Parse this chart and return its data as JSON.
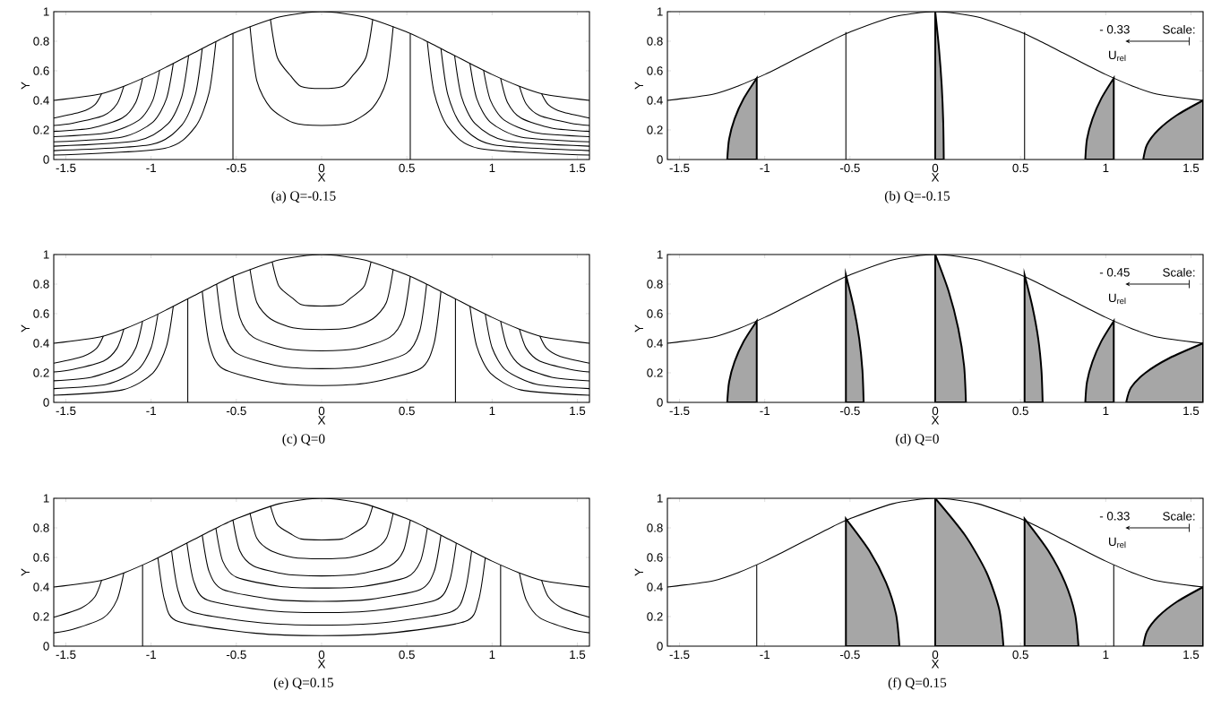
{
  "chart_data": [
    {
      "type": "line",
      "title": "(a)  Q=-0.15",
      "xlabel": "X",
      "ylabel": "Y",
      "color": "#000000",
      "xlim": [
        -1.571,
        1.571
      ],
      "ylim": [
        0,
        1
      ],
      "xticks": [
        -1.5,
        -1,
        -0.5,
        0,
        0.5,
        1,
        1.5
      ],
      "yticks": [
        0,
        0.2,
        0.4,
        0.6,
        0.8,
        1
      ],
      "series": [
        {
          "x": [
            -1.571,
            -1.3,
            -1.15,
            -1.0,
            -0.9,
            -0.75,
            -0.6,
            -0.5,
            -0.25,
            0,
            0.25,
            0.5,
            0.6,
            0.75,
            0.9,
            1.0,
            1.15,
            1.3,
            1.571
          ],
          "values": [
            0.4,
            0.443,
            0.5,
            0.575,
            0.632,
            0.721,
            0.809,
            0.862,
            0.963,
            1,
            0.963,
            0.862,
            0.809,
            0.721,
            0.632,
            0.575,
            0.5,
            0.443,
            0.4
          ]
        },
        {
          "x": [
            -1.571,
            -1.41,
            -1.33,
            -1.29
          ],
          "values": [
            0.28,
            0.322,
            0.371,
            0.446
          ]
        },
        {
          "x": [
            -1.571,
            -1.46,
            -1.28,
            -1.2,
            -1.16
          ],
          "values": [
            0.23,
            0.246,
            0.297,
            0.376,
            0.496
          ]
        },
        {
          "x": [
            -1.571,
            -1.35,
            -1.17,
            -1.09,
            -1.05
          ],
          "values": [
            0.19,
            0.212,
            0.28,
            0.387,
            0.549
          ]
        },
        {
          "x": [
            -1.571,
            -1.25,
            -1.07,
            -0.99,
            -0.95
          ],
          "values": [
            0.155,
            0.182,
            0.267,
            0.401,
            0.603
          ]
        },
        {
          "x": [
            -1.571,
            -1.17,
            -0.99,
            -0.91,
            -0.87
          ],
          "values": [
            0.12,
            0.152,
            0.252,
            0.411,
            0.649
          ]
        },
        {
          "x": [
            -1.571,
            -1.08,
            -0.9,
            -0.82,
            -0.78
          ],
          "values": [
            0.09,
            0.127,
            0.243,
            0.427,
            0.703
          ]
        },
        {
          "x": [
            -1.571,
            -1.0,
            -0.82,
            -0.74,
            -0.7
          ],
          "values": [
            0.06,
            0.101,
            0.233,
            0.44,
            0.751
          ]
        },
        {
          "x": [
            -1.571,
            -0.92,
            -0.74,
            -0.66,
            -0.62
          ],
          "values": [
            0.03,
            0.076,
            0.222,
            0.452,
            0.797
          ]
        },
        {
          "x": [
            1.29,
            1.33,
            1.41,
            1.571
          ],
          "values": [
            0.446,
            0.371,
            0.322,
            0.28
          ]
        },
        {
          "x": [
            1.16,
            1.2,
            1.28,
            1.46,
            1.571
          ],
          "values": [
            0.496,
            0.376,
            0.297,
            0.246,
            0.23
          ]
        },
        {
          "x": [
            1.05,
            1.09,
            1.17,
            1.35,
            1.571
          ],
          "values": [
            0.549,
            0.387,
            0.28,
            0.212,
            0.19
          ]
        },
        {
          "x": [
            0.95,
            0.99,
            1.07,
            1.25,
            1.571
          ],
          "values": [
            0.603,
            0.401,
            0.267,
            0.182,
            0.155
          ]
        },
        {
          "x": [
            0.87,
            0.91,
            0.99,
            1.17,
            1.571
          ],
          "values": [
            0.649,
            0.411,
            0.252,
            0.152,
            0.12
          ]
        },
        {
          "x": [
            0.78,
            0.82,
            0.9,
            1.08,
            1.571
          ],
          "values": [
            0.703,
            0.427,
            0.243,
            0.127,
            0.09
          ]
        },
        {
          "x": [
            0.7,
            0.74,
            0.82,
            1.0,
            1.571
          ],
          "values": [
            0.751,
            0.44,
            0.233,
            0.101,
            0.06
          ]
        },
        {
          "x": [
            0.62,
            0.66,
            0.74,
            0.92,
            1.571
          ],
          "values": [
            0.797,
            0.452,
            0.222,
            0.076,
            0.03
          ]
        },
        {
          "x": [
            -0.52,
            -0.52
          ],
          "values": [
            0,
            0.852
          ]
        },
        {
          "x": [
            0.52,
            0.52
          ],
          "values": [
            0,
            0.852
          ]
        },
        {
          "x": [
            -0.3,
            -0.26,
            -0.18,
            -0.12,
            0,
            0.12,
            0.18,
            0.26,
            0.3
          ],
          "values": [
            0.948,
            0.691,
            0.564,
            0.494,
            0.48,
            0.494,
            0.564,
            0.691,
            0.948
          ]
        },
        {
          "x": [
            -0.42,
            -0.38,
            -0.3,
            -0.168,
            0,
            0.168,
            0.3,
            0.38,
            0.42
          ],
          "values": [
            0.9,
            0.532,
            0.351,
            0.25,
            0.23,
            0.25,
            0.351,
            0.532,
            0.9
          ]
        }
      ]
    },
    {
      "type": "line",
      "title": "(b)  Q=-0.15",
      "xlabel": "X",
      "ylabel": "Y",
      "color": "#000000",
      "xlim": [
        -1.571,
        1.571
      ],
      "ylim": [
        0,
        1
      ],
      "xticks": [
        -1.5,
        -1,
        -0.5,
        0,
        0.5,
        1,
        1.5
      ],
      "yticks": [
        0,
        0.2,
        0.4,
        0.6,
        0.8,
        1
      ],
      "annotations": [
        "- 0.33",
        "Scale:",
        "U$_{rel}$"
      ],
      "series": [
        {
          "x": [
            -1.571,
            -1.3,
            -1.15,
            -1.0,
            -0.9,
            -0.75,
            -0.6,
            -0.5,
            -0.25,
            0,
            0.25,
            0.5,
            0.6,
            0.75,
            0.9,
            1.0,
            1.15,
            1.3,
            1.571
          ],
          "values": [
            0.4,
            0.443,
            0.5,
            0.575,
            0.632,
            0.721,
            0.809,
            0.862,
            0.963,
            1,
            0.963,
            0.862,
            0.809,
            0.721,
            0.632,
            0.575,
            0.5,
            0.443,
            0.4
          ]
        },
        {
          "type": "area",
          "color": "#a6a6a6",
          "x": [
            -1.22,
            -1.209,
            -1.177,
            -1.123,
            -1.047
          ],
          "values": [
            0,
            0.138,
            0.275,
            0.413,
            0.55
          ]
        },
        {
          "x": [
            -0.524,
            -0.524
          ],
          "values": [
            0,
            0.862
          ]
        },
        {
          "type": "area",
          "color": "#a6a6a6",
          "x": [
            0.05,
            0.047,
            0.038,
            0.022,
            0
          ],
          "values": [
            0,
            0.25,
            0.5,
            0.75,
            1
          ]
        },
        {
          "x": [
            0.524,
            0.524
          ],
          "values": [
            0,
            0.862
          ]
        },
        {
          "type": "area",
          "color": "#a6a6a6",
          "x": [
            0.88,
            0.89,
            0.922,
            0.974,
            1.047
          ],
          "values": [
            0,
            0.138,
            0.275,
            0.413,
            0.55
          ]
        },
        {
          "type": "area",
          "color": "#a6a6a6",
          "x": [
            1.22,
            1.242,
            1.308,
            1.417,
            1.571
          ],
          "values": [
            0,
            0.1,
            0.2,
            0.3,
            0.4
          ]
        }
      ]
    },
    {
      "type": "line",
      "title": "(c)  Q=0",
      "xlabel": "X",
      "ylabel": "Y",
      "color": "#000000",
      "xlim": [
        -1.571,
        1.571
      ],
      "ylim": [
        0,
        1
      ],
      "xticks": [
        -1.5,
        -1,
        -0.5,
        0,
        0.5,
        1,
        1.5
      ],
      "yticks": [
        0,
        0.2,
        0.4,
        0.6,
        0.8,
        1
      ],
      "series": [
        {
          "x": [
            -1.571,
            -1.3,
            -1.15,
            -1.0,
            -0.9,
            -0.75,
            -0.6,
            -0.5,
            -0.25,
            0,
            0.25,
            0.5,
            0.6,
            0.75,
            0.9,
            1.0,
            1.15,
            1.3,
            1.571
          ],
          "values": [
            0.4,
            0.443,
            0.5,
            0.575,
            0.632,
            0.721,
            0.809,
            0.862,
            0.963,
            1,
            0.963,
            0.862,
            0.809,
            0.721,
            0.632,
            0.575,
            0.5,
            0.443,
            0.4
          ]
        },
        {
          "x": [
            -1.571,
            -1.4,
            -1.32,
            -1.28
          ],
          "values": [
            0.265,
            0.311,
            0.366,
            0.449
          ]
        },
        {
          "x": [
            -1.571,
            -1.46,
            -1.28,
            -1.2,
            -1.16
          ],
          "values": [
            0.206,
            0.223,
            0.279,
            0.366,
            0.496
          ]
        },
        {
          "x": [
            -1.571,
            -1.35,
            -1.17,
            -1.09,
            -1.05
          ],
          "values": [
            0.146,
            0.17,
            0.247,
            0.368,
            0.549
          ]
        },
        {
          "x": [
            -1.571,
            -1.26,
            -1.08,
            -1.0,
            -0.96
          ],
          "values": [
            0.093,
            0.123,
            0.219,
            0.37,
            0.597
          ]
        },
        {
          "x": [
            -1.571,
            -1.17,
            -0.99,
            -0.91,
            -0.87
          ],
          "values": [
            0.048,
            0.084,
            0.198,
            0.379,
            0.649
          ]
        },
        {
          "x": [
            1.28,
            1.32,
            1.4,
            1.571
          ],
          "values": [
            0.449,
            0.366,
            0.311,
            0.265
          ]
        },
        {
          "x": [
            1.16,
            1.2,
            1.28,
            1.46,
            1.571
          ],
          "values": [
            0.496,
            0.366,
            0.279,
            0.223,
            0.206
          ]
        },
        {
          "x": [
            1.05,
            1.09,
            1.17,
            1.35,
            1.571
          ],
          "values": [
            0.549,
            0.368,
            0.247,
            0.17,
            0.146
          ]
        },
        {
          "x": [
            0.96,
            1.0,
            1.08,
            1.26,
            1.571
          ],
          "values": [
            0.597,
            0.37,
            0.219,
            0.123,
            0.093
          ]
        },
        {
          "x": [
            0.87,
            0.91,
            0.99,
            1.17,
            1.571
          ],
          "values": [
            0.649,
            0.379,
            0.198,
            0.084,
            0.048
          ]
        },
        {
          "x": [
            -0.785,
            -0.785
          ],
          "values": [
            0,
            0.7
          ]
        },
        {
          "x": [
            0.785,
            0.785
          ],
          "values": [
            0,
            0.7
          ]
        },
        {
          "x": [
            -0.29,
            -0.25,
            -0.17,
            -0.116,
            0,
            0.116,
            0.17,
            0.25,
            0.29
          ],
          "values": [
            0.951,
            0.786,
            0.705,
            0.66,
            0.651,
            0.66,
            0.705,
            0.786,
            0.951
          ]
        },
        {
          "x": [
            -0.42,
            -0.38,
            -0.3,
            -0.168,
            0,
            0.168,
            0.3,
            0.38,
            0.42
          ],
          "values": [
            0.9,
            0.676,
            0.565,
            0.504,
            0.492,
            0.504,
            0.565,
            0.676,
            0.9
          ]
        },
        {
          "x": [
            -0.52,
            -0.48,
            -0.4,
            -0.208,
            0,
            0.208,
            0.4,
            0.48,
            0.52
          ],
          "values": [
            0.852,
            0.575,
            0.44,
            0.364,
            0.349,
            0.364,
            0.44,
            0.575,
            0.852
          ]
        },
        {
          "x": [
            -0.616,
            -0.576,
            -0.496,
            -0.246,
            0,
            0.246,
            0.496,
            0.576,
            0.616
          ],
          "values": [
            0.8,
            0.485,
            0.331,
            0.245,
            0.228,
            0.245,
            0.331,
            0.485,
            0.8
          ]
        },
        {
          "x": [
            -0.7,
            -0.66,
            -0.58,
            -0.28,
            0,
            0.28,
            0.58,
            0.66,
            0.7
          ],
          "values": [
            0.751,
            0.401,
            0.229,
            0.133,
            0.114,
            0.133,
            0.229,
            0.401,
            0.751
          ]
        }
      ]
    },
    {
      "type": "line",
      "title": "(d)  Q=0",
      "xlabel": "X",
      "ylabel": "Y",
      "color": "#000000",
      "xlim": [
        -1.571,
        1.571
      ],
      "ylim": [
        0,
        1
      ],
      "xticks": [
        -1.5,
        -1,
        -0.5,
        0,
        0.5,
        1,
        1.5
      ],
      "yticks": [
        0,
        0.2,
        0.4,
        0.6,
        0.8,
        1
      ],
      "annotations": [
        "- 0.45",
        "Scale:",
        "U$_{rel}$"
      ],
      "series": [
        {
          "x": [
            -1.571,
            -1.3,
            -1.15,
            -1.0,
            -0.9,
            -0.75,
            -0.6,
            -0.5,
            -0.25,
            0,
            0.25,
            0.5,
            0.6,
            0.75,
            0.9,
            1.0,
            1.15,
            1.3,
            1.571
          ],
          "values": [
            0.4,
            0.443,
            0.5,
            0.575,
            0.632,
            0.721,
            0.809,
            0.862,
            0.963,
            1,
            0.963,
            0.862,
            0.809,
            0.721,
            0.632,
            0.575,
            0.5,
            0.443,
            0.4
          ]
        },
        {
          "type": "area",
          "color": "#a6a6a6",
          "x": [
            -1.22,
            -1.209,
            -1.177,
            -1.123,
            -1.047
          ],
          "values": [
            0,
            0.138,
            0.275,
            0.413,
            0.55
          ]
        },
        {
          "type": "area",
          "color": "#a6a6a6",
          "x": [
            -0.42,
            -0.427,
            -0.446,
            -0.479,
            -0.524
          ],
          "values": [
            0,
            0.216,
            0.431,
            0.647,
            0.862
          ]
        },
        {
          "type": "area",
          "color": "#a6a6a6",
          "x": [
            0.18,
            0.169,
            0.135,
            0.079,
            0
          ],
          "values": [
            0,
            0.25,
            0.5,
            0.75,
            1
          ]
        },
        {
          "type": "area",
          "color": "#a6a6a6",
          "x": [
            0.63,
            0.623,
            0.604,
            0.57,
            0.524
          ],
          "values": [
            0,
            0.216,
            0.431,
            0.647,
            0.862
          ]
        },
        {
          "type": "area",
          "color": "#a6a6a6",
          "x": [
            0.88,
            0.89,
            0.922,
            0.974,
            1.047
          ],
          "values": [
            0,
            0.138,
            0.275,
            0.413,
            0.55
          ]
        },
        {
          "type": "area",
          "color": "#a6a6a6",
          "x": [
            1.12,
            1.148,
            1.233,
            1.374,
            1.571
          ],
          "values": [
            0,
            0.1,
            0.2,
            0.3,
            0.4
          ]
        }
      ]
    },
    {
      "type": "line",
      "title": "(e)  Q=0.15",
      "xlabel": "X",
      "ylabel": "Y",
      "color": "#000000",
      "xlim": [
        -1.571,
        1.571
      ],
      "ylim": [
        0,
        1
      ],
      "xticks": [
        -1.5,
        -1,
        -0.5,
        0,
        0.5,
        1,
        1.5
      ],
      "yticks": [
        0,
        0.2,
        0.4,
        0.6,
        0.8,
        1
      ],
      "series": [
        {
          "x": [
            -1.571,
            -1.3,
            -1.15,
            -1.0,
            -0.9,
            -0.75,
            -0.6,
            -0.5,
            -0.25,
            0,
            0.25,
            0.5,
            0.6,
            0.75,
            0.9,
            1.0,
            1.15,
            1.3,
            1.571
          ],
          "values": [
            0.4,
            0.443,
            0.5,
            0.575,
            0.632,
            0.721,
            0.809,
            0.862,
            0.963,
            1,
            0.963,
            0.862,
            0.809,
            0.721,
            0.632,
            0.575,
            0.5,
            0.443,
            0.4
          ]
        },
        {
          "x": [
            -1.571,
            -1.41,
            -1.33,
            -1.29
          ],
          "values": [
            0.195,
            0.258,
            0.333,
            0.446
          ]
        },
        {
          "x": [
            -1.571,
            -1.46,
            -1.28,
            -1.2,
            -1.16
          ],
          "values": [
            0.09,
            0.114,
            0.192,
            0.313,
            0.496
          ]
        },
        {
          "x": [
            1.29,
            1.33,
            1.41,
            1.571
          ],
          "values": [
            0.446,
            0.333,
            0.258,
            0.195
          ]
        },
        {
          "x": [
            1.16,
            1.2,
            1.28,
            1.46,
            1.571
          ],
          "values": [
            0.496,
            0.313,
            0.192,
            0.114,
            0.09
          ]
        },
        {
          "x": [
            -1.05,
            -1.05
          ],
          "values": [
            0,
            0.549
          ]
        },
        {
          "x": [
            1.05,
            1.05
          ],
          "values": [
            0,
            0.549
          ]
        },
        {
          "x": [
            -0.3,
            -0.26,
            -0.18,
            -0.12,
            0,
            0.12,
            0.18,
            0.26,
            0.3
          ],
          "values": [
            0.948,
            0.822,
            0.759,
            0.725,
            0.718,
            0.725,
            0.759,
            0.822,
            0.948
          ]
        },
        {
          "x": [
            -0.42,
            -0.38,
            -0.3,
            -0.168,
            0,
            0.168,
            0.3,
            0.38,
            0.42
          ],
          "values": [
            0.9,
            0.73,
            0.647,
            0.6,
            0.591,
            0.6,
            0.647,
            0.73,
            0.9
          ]
        },
        {
          "x": [
            -0.52,
            -0.48,
            -0.4,
            -0.208,
            0,
            0.208,
            0.4,
            0.48,
            0.52
          ],
          "values": [
            0.852,
            0.645,
            0.543,
            0.486,
            0.475,
            0.486,
            0.543,
            0.645,
            0.852
          ]
        },
        {
          "x": [
            -0.62,
            -0.58,
            -0.5,
            -0.248,
            0,
            0.248,
            0.5,
            0.58,
            0.62
          ],
          "values": [
            0.797,
            0.575,
            0.466,
            0.405,
            0.393,
            0.405,
            0.466,
            0.575,
            0.797
          ]
        },
        {
          "x": [
            -0.7,
            -0.66,
            -0.58,
            -0.28,
            0,
            0.28,
            0.58,
            0.66,
            0.7
          ],
          "values": [
            0.751,
            0.505,
            0.384,
            0.316,
            0.303,
            0.316,
            0.384,
            0.505,
            0.751
          ]
        },
        {
          "x": [
            -0.79,
            -0.75,
            -0.67,
            -0.316,
            0,
            0.316,
            0.67,
            0.75,
            0.79
          ],
          "values": [
            0.697,
            0.439,
            0.312,
            0.241,
            0.227,
            0.241,
            0.312,
            0.439,
            0.697
          ]
        },
        {
          "x": [
            -0.88,
            -0.84,
            -0.76,
            -0.352,
            0,
            0.352,
            0.76,
            0.84,
            0.88
          ],
          "values": [
            0.644,
            0.368,
            0.232,
            0.157,
            0.142,
            0.157,
            0.232,
            0.368,
            0.644
          ]
        },
        {
          "x": [
            -0.96,
            -0.92,
            -0.84,
            -0.384,
            0,
            0.384,
            0.84,
            0.92,
            0.96
          ],
          "values": [
            0.597,
            0.308,
            0.166,
            0.087,
            0.071,
            0.087,
            0.166,
            0.308,
            0.597
          ]
        }
      ]
    },
    {
      "type": "line",
      "title": "(f)  Q=0.15",
      "xlabel": "X",
      "ylabel": "Y",
      "color": "#000000",
      "xlim": [
        -1.571,
        1.571
      ],
      "ylim": [
        0,
        1
      ],
      "xticks": [
        -1.5,
        -1,
        -0.5,
        0,
        0.5,
        1,
        1.5
      ],
      "yticks": [
        0,
        0.2,
        0.4,
        0.6,
        0.8,
        1
      ],
      "annotations": [
        "- 0.33",
        "Scale:",
        "U$_{rel}$"
      ],
      "series": [
        {
          "x": [
            -1.571,
            -1.3,
            -1.15,
            -1.0,
            -0.9,
            -0.75,
            -0.6,
            -0.5,
            -0.25,
            0,
            0.25,
            0.5,
            0.6,
            0.75,
            0.9,
            1.0,
            1.15,
            1.3,
            1.571
          ],
          "values": [
            0.4,
            0.443,
            0.5,
            0.575,
            0.632,
            0.721,
            0.809,
            0.862,
            0.963,
            1,
            0.963,
            0.862,
            0.809,
            0.721,
            0.632,
            0.575,
            0.5,
            0.443,
            0.4
          ]
        },
        {
          "x": [
            -1.047,
            -1.047
          ],
          "values": [
            0,
            0.55
          ]
        },
        {
          "type": "area",
          "color": "#a6a6a6",
          "x": [
            -0.21,
            -0.23,
            -0.289,
            -0.387,
            -0.524
          ],
          "values": [
            0,
            0.216,
            0.431,
            0.647,
            0.862
          ]
        },
        {
          "type": "area",
          "color": "#a6a6a6",
          "x": [
            0.4,
            0.375,
            0.3,
            0.175,
            0
          ],
          "values": [
            0,
            0.25,
            0.5,
            0.75,
            1
          ]
        },
        {
          "type": "area",
          "color": "#a6a6a6",
          "x": [
            0.84,
            0.82,
            0.761,
            0.662,
            0.524
          ],
          "values": [
            0,
            0.216,
            0.431,
            0.647,
            0.862
          ]
        },
        {
          "x": [
            1.047,
            1.047
          ],
          "values": [
            0,
            0.55
          ]
        },
        {
          "type": "area",
          "color": "#a6a6a6",
          "x": [
            1.22,
            1.242,
            1.308,
            1.417,
            1.571
          ],
          "values": [
            0,
            0.1,
            0.2,
            0.3,
            0.4
          ]
        }
      ]
    }
  ]
}
